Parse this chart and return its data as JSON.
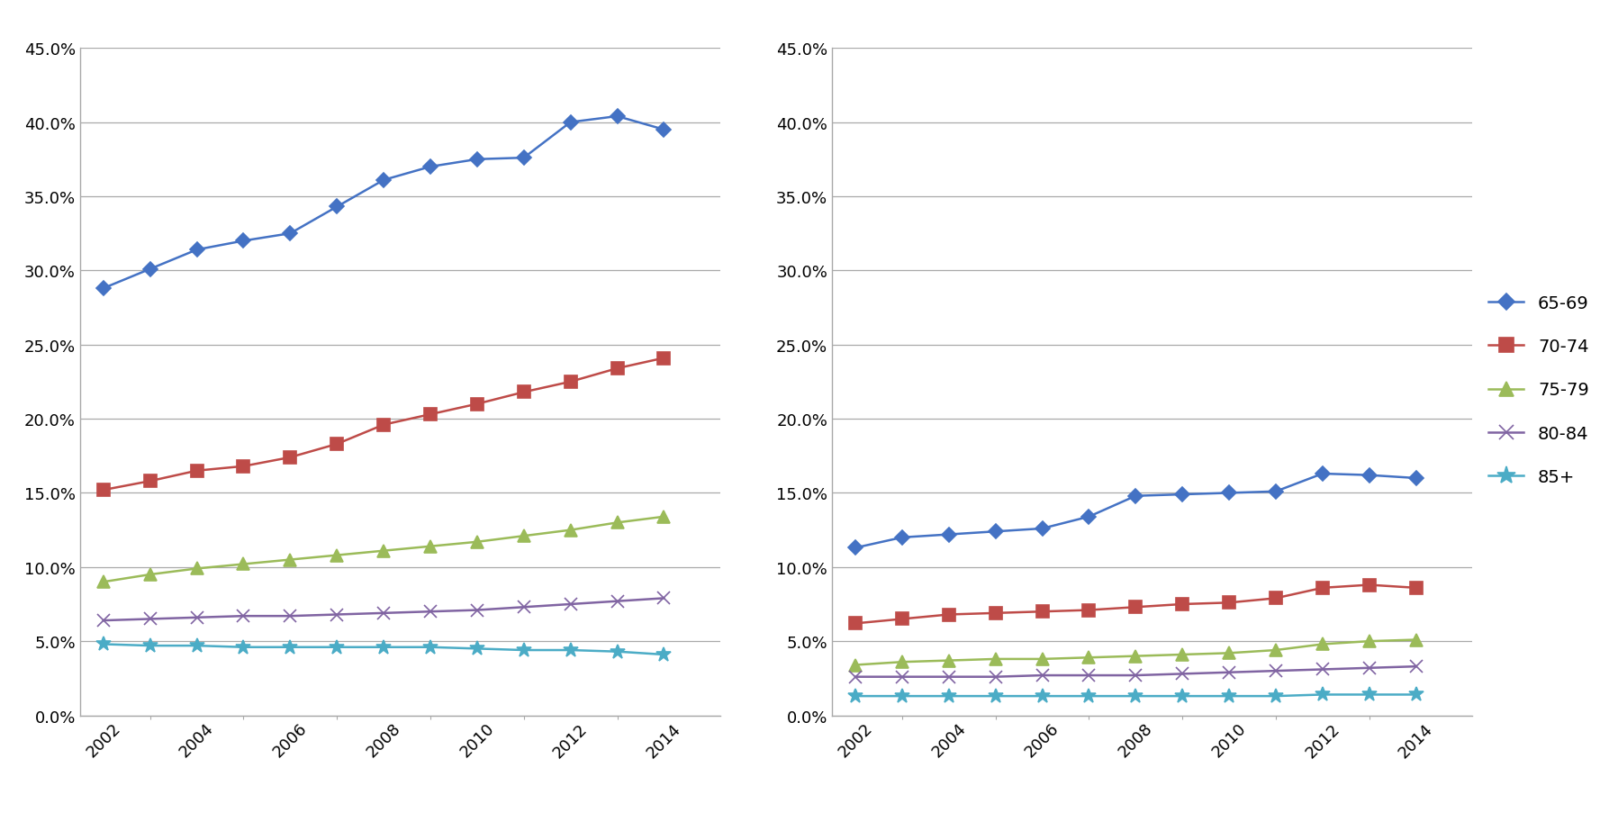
{
  "years": [
    2002,
    2003,
    2004,
    2005,
    2006,
    2007,
    2008,
    2009,
    2010,
    2011,
    2012,
    2013,
    2014
  ],
  "chart1": {
    "65-69": [
      0.288,
      0.301,
      0.314,
      0.32,
      0.325,
      0.343,
      0.361,
      0.37,
      0.375,
      0.376,
      0.4,
      0.404,
      0.395
    ],
    "70-74": [
      0.152,
      0.158,
      0.165,
      0.168,
      0.174,
      0.183,
      0.196,
      0.203,
      0.21,
      0.218,
      0.225,
      0.234,
      0.241
    ],
    "75-79": [
      0.09,
      0.095,
      0.099,
      0.102,
      0.105,
      0.108,
      0.111,
      0.114,
      0.117,
      0.121,
      0.125,
      0.13,
      0.134
    ],
    "80-84": [
      0.064,
      0.065,
      0.066,
      0.067,
      0.067,
      0.068,
      0.069,
      0.07,
      0.071,
      0.073,
      0.075,
      0.077,
      0.079
    ],
    "85+": [
      0.048,
      0.047,
      0.047,
      0.046,
      0.046,
      0.046,
      0.046,
      0.046,
      0.045,
      0.044,
      0.044,
      0.043,
      0.041
    ]
  },
  "chart2": {
    "65-69": [
      0.113,
      0.12,
      0.122,
      0.124,
      0.126,
      0.134,
      0.148,
      0.149,
      0.15,
      0.151,
      0.163,
      0.162,
      0.16
    ],
    "70-74": [
      0.062,
      0.065,
      0.068,
      0.069,
      0.07,
      0.071,
      0.073,
      0.075,
      0.076,
      0.079,
      0.086,
      0.088,
      0.086
    ],
    "75-79": [
      0.034,
      0.036,
      0.037,
      0.038,
      0.038,
      0.039,
      0.04,
      0.041,
      0.042,
      0.044,
      0.048,
      0.05,
      0.051
    ],
    "80-84": [
      0.026,
      0.026,
      0.026,
      0.026,
      0.027,
      0.027,
      0.027,
      0.028,
      0.029,
      0.03,
      0.031,
      0.032,
      0.033
    ],
    "85+": [
      0.013,
      0.013,
      0.013,
      0.013,
      0.013,
      0.013,
      0.013,
      0.013,
      0.013,
      0.013,
      0.014,
      0.014,
      0.014
    ]
  },
  "colors": {
    "65-69": "#4472C4",
    "70-74": "#BE4B48",
    "75-79": "#9BBB59",
    "80-84": "#8064A2",
    "85+": "#4BACC6"
  },
  "markers": {
    "65-69": "D",
    "70-74": "s",
    "75-79": "^",
    "80-84": "x",
    "85+": "*"
  },
  "marker_sizes": {
    "65-69": 8,
    "70-74": 10,
    "75-79": 10,
    "80-84": 10,
    "85+": 12
  },
  "ylim": [
    0.0,
    0.45
  ],
  "yticks": [
    0.0,
    0.05,
    0.1,
    0.15,
    0.2,
    0.25,
    0.3,
    0.35,
    0.4,
    0.45
  ],
  "xticks": [
    2002,
    2004,
    2006,
    2008,
    2010,
    2012,
    2014
  ],
  "legend_labels": [
    "65-69",
    "70-74",
    "75-79",
    "80-84",
    "85+"
  ],
  "background_color": "#FFFFFF",
  "grid_color": "#A9A9A9",
  "spine_color": "#A9A9A9"
}
